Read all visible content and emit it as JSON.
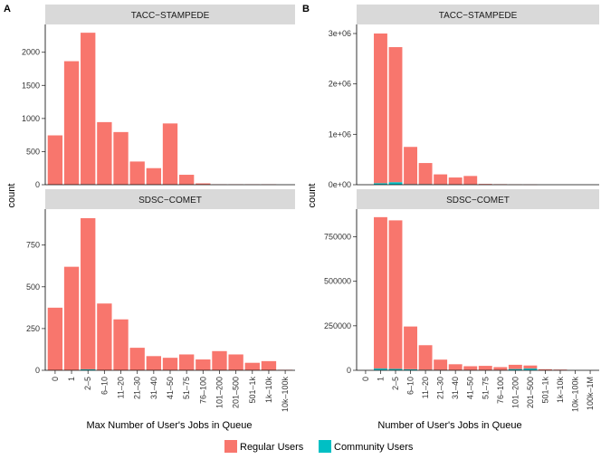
{
  "figure": {
    "legend": {
      "regular_label": "Regular Users",
      "community_label": "Community Users",
      "regular_color": "#F8766D",
      "community_color": "#00BFC4"
    }
  },
  "chart_data": [
    {
      "type": "bar",
      "stacked": true,
      "panel_label": "A",
      "xlabel": "Max Number of User's Jobs in Queue",
      "ylabel": "count",
      "categories": [
        "0",
        "1",
        "2–5",
        "6–10",
        "11–20",
        "21–30",
        "31–40",
        "41–50",
        "51–75",
        "76–100",
        "101–200",
        "201–500",
        "501–1k",
        "1k–10k",
        "10k–100k"
      ],
      "facets": [
        {
          "title": "TACC−STAMPEDE",
          "ylim": [
            0,
            2420
          ],
          "yticks": [
            0,
            500,
            1000,
            1500,
            2000
          ],
          "ytick_labels": [
            "0",
            "500",
            "1000",
            "1500",
            "2000"
          ],
          "series": [
            {
              "name": "Regular Users",
              "values": [
                745,
                1865,
                2290,
                945,
                795,
                350,
                250,
                925,
                150,
                20,
                5,
                5,
                5,
                5,
                0
              ]
            },
            {
              "name": "Community Users",
              "values": [
                0,
                0,
                5,
                0,
                0,
                0,
                0,
                0,
                0,
                0,
                0,
                0,
                0,
                0,
                0
              ]
            }
          ]
        },
        {
          "title": "SDSC−COMET",
          "ylim": [
            0,
            965
          ],
          "yticks": [
            0,
            250,
            500,
            750
          ],
          "ytick_labels": [
            "0",
            "250",
            "500",
            "750"
          ],
          "series": [
            {
              "name": "Regular Users",
              "values": [
                375,
                620,
                905,
                400,
                305,
                135,
                85,
                75,
                95,
                65,
                115,
                95,
                45,
                55,
                3
              ]
            },
            {
              "name": "Community Users",
              "values": [
                0,
                0,
                6,
                0,
                0,
                0,
                0,
                0,
                0,
                0,
                0,
                0,
                0,
                0,
                0
              ]
            }
          ]
        }
      ]
    },
    {
      "type": "bar",
      "stacked": true,
      "panel_label": "B",
      "xlabel": "Number of User's Jobs in Queue",
      "ylabel": "count",
      "categories": [
        "0",
        "1",
        "2–5",
        "6–10",
        "11–20",
        "21–30",
        "31–40",
        "41–50",
        "51–75",
        "76–100",
        "101–200",
        "201–500",
        "501–1k",
        "1k–10k",
        "10k–100k",
        "100k–1M"
      ],
      "facets": [
        {
          "title": "TACC−STAMPEDE",
          "ylim": [
            0,
            3180000
          ],
          "yticks": [
            0,
            1000000,
            2000000,
            3000000
          ],
          "ytick_labels": [
            "0e+00",
            "1e+06",
            "2e+06",
            "3e+06"
          ],
          "series": [
            {
              "name": "Regular Users",
              "values": [
                0,
                2970000,
                2680000,
                740000,
                420000,
                200000,
                140000,
                170000,
                15000,
                10000,
                4000,
                3000,
                0,
                0,
                0,
                0
              ]
            },
            {
              "name": "Community Users",
              "values": [
                0,
                30000,
                50000,
                10000,
                10000,
                5000,
                3000,
                3000,
                0,
                0,
                0,
                0,
                0,
                0,
                0,
                0
              ]
            }
          ]
        },
        {
          "title": "SDSC−COMET",
          "ylim": [
            0,
            905000
          ],
          "yticks": [
            0,
            250000,
            500000,
            750000
          ],
          "ytick_labels": [
            "0",
            "250000",
            "500000",
            "750000"
          ],
          "series": [
            {
              "name": "Regular Users",
              "values": [
                0,
                850000,
                834000,
                240000,
                138000,
                58000,
                33000,
                22000,
                24000,
                17000,
                24000,
                17000,
                6000,
                4000,
                0,
                0
              ]
            },
            {
              "name": "Community Users",
              "values": [
                0,
                10000,
                8000,
                6000,
                3000,
                2000,
                1000,
                1000,
                1000,
                1000,
                7000,
                10000,
                0,
                0,
                0,
                0
              ]
            }
          ]
        }
      ]
    }
  ]
}
